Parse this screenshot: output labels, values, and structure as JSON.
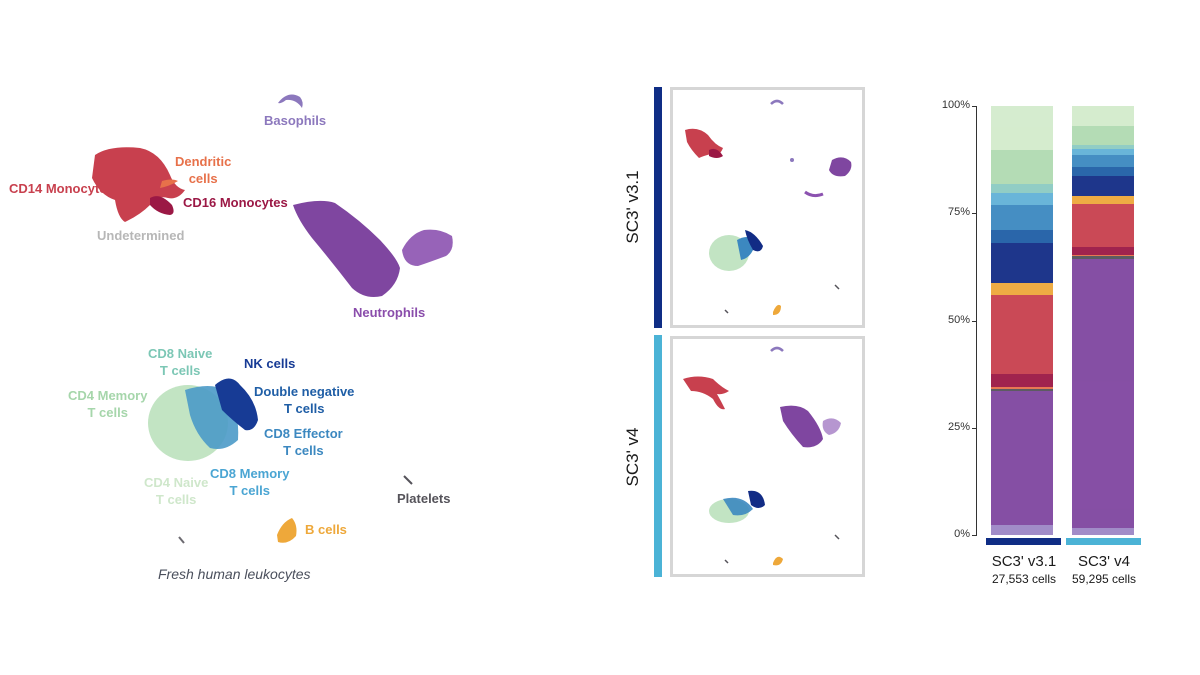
{
  "umap": {
    "caption": "Fresh human leukocytes",
    "labels": {
      "basophils": "Basophils",
      "dendritic_1": "Dendritic",
      "dendritic_2": "cells",
      "cd14_mono": "CD14 Monocytes",
      "cd16_mono": "CD16 Monocytes",
      "undetermined": "Undetermined",
      "neutrophils": "Neutrophils",
      "cd8_naive_1": "CD8 Naive",
      "cd8_naive_2": "T cells",
      "nk": "NK cells",
      "cd4_memory_1": "CD4 Memory",
      "cd4_memory_2": "T cells",
      "dn_t_1": "Double negative",
      "dn_t_2": "T cells",
      "cd8_effector_1": "CD8 Effector",
      "cd8_effector_2": "T cells",
      "cd8_memory_1": "CD8 Memory",
      "cd8_memory_2": "T cells",
      "cd4_naive_1": "CD4 Naive",
      "cd4_naive_2": "T cells",
      "platelets": "Platelets",
      "b_cells": "B cells"
    }
  },
  "panels": [
    {
      "label": "SC3' v3.1",
      "color": "#0f2d85"
    },
    {
      "label": "SC3' v4",
      "color": "#4bb3d6"
    }
  ],
  "colors": {
    "cd4_naive": "#d3ebcc",
    "cd4_memory": "#b0dbb2",
    "cd8_naive": "#8ccbc2",
    "cd8_memory": "#62b2d8",
    "cd8_effector": "#3c88c0",
    "dn_t": "#1f5ea6",
    "nk": "#122c85",
    "b_cells": "#eea83a",
    "cd14_mono": "#c8404e",
    "cd16_mono": "#9b1845",
    "dendritic": "#e7714a",
    "platelets": "#55535a",
    "neutrophils": "#7f46a0",
    "basophils": "#8c78bd",
    "undetermined": "#b7b7b7"
  },
  "chart_data": {
    "type": "bar",
    "stacked": true,
    "title": "",
    "xlabel": "",
    "ylabel": "",
    "ylim": [
      0,
      100
    ],
    "yticks": [
      "0%",
      "25%",
      "50%",
      "75%",
      "100%"
    ],
    "categories": [
      "SC3' v3.1",
      "SC3' v4"
    ],
    "category_subtitles": [
      "27,553 cells",
      "59,295 cells"
    ],
    "series": [
      {
        "name": "Basophils",
        "color": "#9c86c6",
        "values": [
          2.3,
          1.6
        ]
      },
      {
        "name": "Neutrophils",
        "color": "#7f46a0",
        "values": [
          31.2,
          62.7
        ]
      },
      {
        "name": "Platelets",
        "color": "#55535a",
        "values": [
          0.5,
          0.7
        ]
      },
      {
        "name": "Dendritic cells",
        "color": "#e7714a",
        "values": [
          0.5,
          0.2
        ]
      },
      {
        "name": "CD16 Monocytes",
        "color": "#9b1845",
        "values": [
          3.0,
          1.9
        ]
      },
      {
        "name": "CD14 Monocytes",
        "color": "#c8404e",
        "values": [
          18.4,
          10.0
        ]
      },
      {
        "name": "B cells",
        "color": "#eea83a",
        "values": [
          2.8,
          1.9
        ]
      },
      {
        "name": "NK cells",
        "color": "#122c85",
        "values": [
          9.3,
          4.7
        ]
      },
      {
        "name": "Double negative T cells",
        "color": "#1f5ea6",
        "values": [
          3.0,
          2.1
        ]
      },
      {
        "name": "CD8 Effector T cells",
        "color": "#3c88c0",
        "values": [
          5.8,
          2.8
        ]
      },
      {
        "name": "CD8 Memory T cells",
        "color": "#62b2d8",
        "values": [
          2.8,
          1.4
        ]
      },
      {
        "name": "CD8 Naive T cells",
        "color": "#8ccbc2",
        "values": [
          2.1,
          0.9
        ]
      },
      {
        "name": "CD4 Memory T cells",
        "color": "#b0dbb2",
        "values": [
          7.9,
          4.4
        ]
      },
      {
        "name": "CD4 Naive T cells",
        "color": "#d3ebcc",
        "values": [
          10.3,
          4.7
        ]
      }
    ]
  },
  "bar_axis": {
    "ticks": [
      "100%",
      "75%",
      "50%",
      "25%",
      "0%"
    ]
  },
  "groups": [
    {
      "name": "SC3' v3.1",
      "count": "27,553 cells",
      "color": "#0f2d85"
    },
    {
      "name": "SC3' v4",
      "count": "59,295 cells",
      "color": "#4bb3d6"
    }
  ]
}
